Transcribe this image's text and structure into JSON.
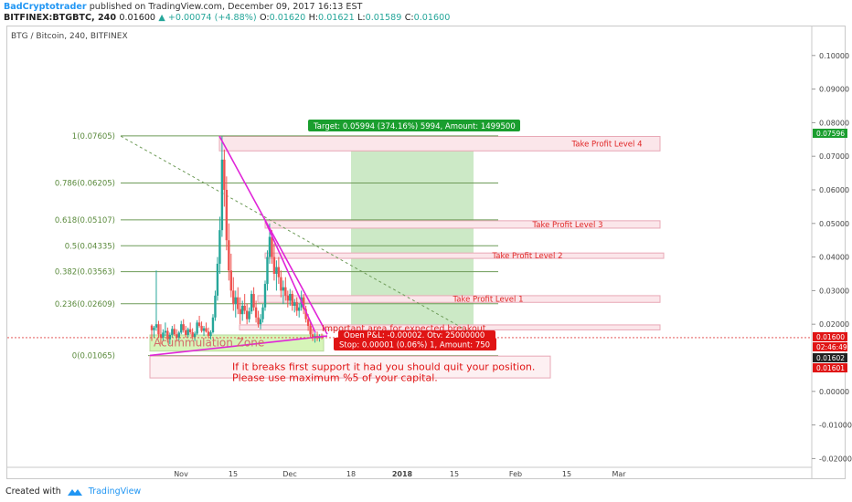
{
  "header": {
    "author": "BadCryptotrader",
    "published": "published on TradingView.com, December 09, 2017 16:13 EST",
    "symbol": "BITFINEX:BTGBTC, 240",
    "last": "0.01600",
    "change": "▲ +0.00074 (+4.88%)",
    "o_label": "O:",
    "o_value": "0.01620",
    "h_label": "H:",
    "h_value": "0.01621",
    "l_label": "L:",
    "l_value": "0.01589",
    "c_label": "C:",
    "c_value": "0.01600"
  },
  "chart_title": "BTG / Bitcoin, 240, BITFINEX",
  "footer": {
    "created_with": "Created with",
    "brand": "TradingView"
  },
  "colors": {
    "fib_line": "#6e9b58",
    "fib_label": "#5a8a3c",
    "trend": "#e024d8",
    "tp_fill": "#fbe6ea",
    "tp_border": "#e8a8b6",
    "tp_text": "#e02525",
    "target_fill": "#c6e7c0",
    "target_badge": "#1a9e2e",
    "stop_badge": "#e01414",
    "zone_fill": "#d6f5b8",
    "zone_text": "#d46a6a",
    "candle_up": "#26a69a",
    "candle_down": "#ef5350",
    "price_line": "#e04040"
  },
  "chart_data": {
    "type": "candlestick",
    "y_axis": {
      "ticks": [
        "0.10000",
        "0.09000",
        "0.08000",
        "0.07000",
        "0.06000",
        "0.05000",
        "0.04000",
        "0.03000",
        "0.02000",
        "0.00000",
        "-0.01000",
        "-0.02000"
      ],
      "range": [
        -0.023,
        0.104
      ]
    },
    "x_axis": {
      "ticks": [
        "Nov",
        "15",
        "Dec",
        "18",
        "2018",
        "15",
        "Feb",
        "15",
        "Mar"
      ]
    },
    "price_badges": [
      {
        "value": "0.07596",
        "color": "#1a9e2e"
      },
      {
        "value": "0.01600",
        "color": "#e01414"
      },
      {
        "value": "02:46:49",
        "color": "#e01414"
      },
      {
        "value": "0.01602",
        "color": "#222222"
      },
      {
        "value": "0.01601",
        "color": "#e01414"
      }
    ],
    "fib_levels": [
      {
        "label": "1(0.07605)",
        "value": 0.07605
      },
      {
        "label": "0.786(0.06205)",
        "value": 0.06205
      },
      {
        "label": "0.618(0.05107)",
        "value": 0.05107
      },
      {
        "label": "0.5(0.04335)",
        "value": 0.04335
      },
      {
        "label": "0.382(0.03563)",
        "value": 0.03563
      },
      {
        "label": "0.236(0.02609)",
        "value": 0.02609
      },
      {
        "label": "0(0.01065)",
        "value": 0.01065
      }
    ],
    "take_profit": [
      {
        "label": "Take Profit Level 4",
        "low": 0.0716,
        "high": 0.0759
      },
      {
        "label": "Take Profit Level 3",
        "low": 0.0486,
        "high": 0.0508
      },
      {
        "label": "Take Profit Level 2",
        "low": 0.0396,
        "high": 0.0412
      },
      {
        "label": "Take Profit Level 1",
        "low": 0.0265,
        "high": 0.0285
      }
    ],
    "target_label": "Target: 0.05994 (374.16%) 5994, Amount: 1499500",
    "stop_label": "Stop: 0.00001 (0.06%) 1, Amount: 750",
    "order_label": "Open P&L: -0.00002, Qty: 25000000",
    "annotations": {
      "breakout": "Important area for expected breakout",
      "zone": "Acummulation Zone",
      "warning_line1": "If it breaks first support it had you should quit your position.",
      "warning_line2": "Please use maximum %5 of your capital."
    },
    "candles": [
      [
        0.0196,
        0.02,
        0.015,
        0.0182
      ],
      [
        0.0182,
        0.0195,
        0.016,
        0.019
      ],
      [
        0.019,
        0.036,
        0.018,
        0.02
      ],
      [
        0.02,
        0.021,
        0.016,
        0.017
      ],
      [
        0.017,
        0.02,
        0.014,
        0.016
      ],
      [
        0.016,
        0.0185,
        0.015,
        0.0175
      ],
      [
        0.0175,
        0.0205,
        0.0165,
        0.018
      ],
      [
        0.018,
        0.019,
        0.0145,
        0.0155
      ],
      [
        0.0155,
        0.0175,
        0.014,
        0.0168
      ],
      [
        0.0168,
        0.0195,
        0.016,
        0.0186
      ],
      [
        0.0186,
        0.02,
        0.0165,
        0.017
      ],
      [
        0.017,
        0.0185,
        0.015,
        0.016
      ],
      [
        0.016,
        0.018,
        0.0152,
        0.0175
      ],
      [
        0.0175,
        0.021,
        0.017,
        0.02
      ],
      [
        0.02,
        0.0215,
        0.0175,
        0.0182
      ],
      [
        0.0182,
        0.0195,
        0.016,
        0.0168
      ],
      [
        0.0168,
        0.019,
        0.016,
        0.0185
      ],
      [
        0.0185,
        0.0205,
        0.017,
        0.0176
      ],
      [
        0.0176,
        0.0188,
        0.0155,
        0.0162
      ],
      [
        0.0162,
        0.0178,
        0.015,
        0.0172
      ],
      [
        0.0172,
        0.0212,
        0.0168,
        0.0205
      ],
      [
        0.0205,
        0.0225,
        0.019,
        0.0195
      ],
      [
        0.0195,
        0.0208,
        0.0175,
        0.018
      ],
      [
        0.018,
        0.0195,
        0.0165,
        0.0188
      ],
      [
        0.0188,
        0.0205,
        0.0175,
        0.0178
      ],
      [
        0.0178,
        0.019,
        0.0158,
        0.0165
      ],
      [
        0.0165,
        0.0182,
        0.0155,
        0.0176
      ],
      [
        0.0176,
        0.023,
        0.0172,
        0.022
      ],
      [
        0.022,
        0.03,
        0.021,
        0.0285
      ],
      [
        0.0285,
        0.04,
        0.027,
        0.038
      ],
      [
        0.038,
        0.052,
        0.035,
        0.048
      ],
      [
        0.048,
        0.076,
        0.046,
        0.069
      ],
      [
        0.069,
        0.072,
        0.055,
        0.06
      ],
      [
        0.06,
        0.064,
        0.042,
        0.045
      ],
      [
        0.045,
        0.05,
        0.033,
        0.036
      ],
      [
        0.036,
        0.041,
        0.028,
        0.03
      ],
      [
        0.03,
        0.034,
        0.024,
        0.026
      ],
      [
        0.026,
        0.03,
        0.022,
        0.028
      ],
      [
        0.028,
        0.031,
        0.023,
        0.0245
      ],
      [
        0.0245,
        0.028,
        0.02,
        0.023
      ],
      [
        0.023,
        0.027,
        0.021,
        0.0255
      ],
      [
        0.0255,
        0.029,
        0.023,
        0.024
      ],
      [
        0.024,
        0.0262,
        0.02,
        0.0215
      ],
      [
        0.0215,
        0.025,
        0.0205,
        0.0238
      ],
      [
        0.0238,
        0.03,
        0.023,
        0.029
      ],
      [
        0.029,
        0.031,
        0.024,
        0.025
      ],
      [
        0.025,
        0.027,
        0.0205,
        0.022
      ],
      [
        0.022,
        0.024,
        0.019,
        0.02
      ],
      [
        0.02,
        0.023,
        0.0185,
        0.0215
      ],
      [
        0.0215,
        0.026,
        0.0205,
        0.025
      ],
      [
        0.025,
        0.033,
        0.024,
        0.032
      ],
      [
        0.032,
        0.042,
        0.03,
        0.04
      ],
      [
        0.04,
        0.05,
        0.038,
        0.046
      ],
      [
        0.046,
        0.048,
        0.038,
        0.04
      ],
      [
        0.04,
        0.044,
        0.033,
        0.035
      ],
      [
        0.035,
        0.039,
        0.03,
        0.037
      ],
      [
        0.037,
        0.04,
        0.032,
        0.034
      ],
      [
        0.034,
        0.036,
        0.028,
        0.03
      ],
      [
        0.03,
        0.033,
        0.026,
        0.031
      ],
      [
        0.031,
        0.034,
        0.027,
        0.0285
      ],
      [
        0.0285,
        0.03,
        0.025,
        0.027
      ],
      [
        0.027,
        0.0305,
        0.0255,
        0.029
      ],
      [
        0.029,
        0.03,
        0.024,
        0.0255
      ],
      [
        0.0255,
        0.0275,
        0.0235,
        0.0265
      ],
      [
        0.0265,
        0.028,
        0.0225,
        0.024
      ],
      [
        0.024,
        0.0262,
        0.022,
        0.025
      ],
      [
        0.025,
        0.03,
        0.024,
        0.028
      ],
      [
        0.028,
        0.029,
        0.023,
        0.0245
      ],
      [
        0.0245,
        0.0255,
        0.0205,
        0.0215
      ],
      [
        0.0215,
        0.023,
        0.018,
        0.0195
      ],
      [
        0.0195,
        0.021,
        0.016,
        0.017
      ],
      [
        0.017,
        0.0185,
        0.015,
        0.016
      ],
      [
        0.016,
        0.0175,
        0.0145,
        0.0165
      ],
      [
        0.0165,
        0.0178,
        0.015,
        0.0158
      ],
      [
        0.0158,
        0.017,
        0.0148,
        0.0162
      ],
      [
        0.0162,
        0.0172,
        0.0155,
        0.016
      ]
    ]
  }
}
